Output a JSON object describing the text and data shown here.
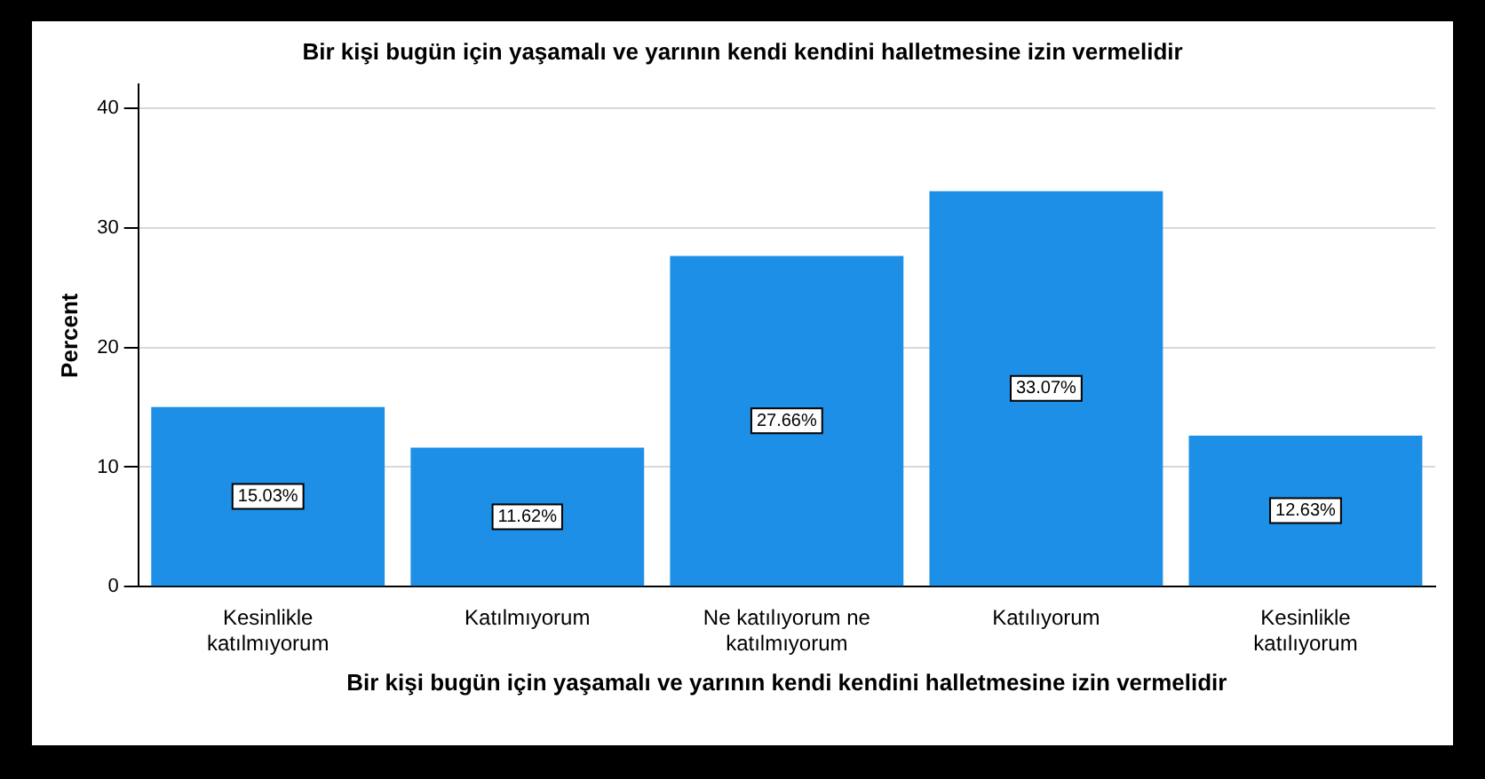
{
  "chart_data": {
    "type": "bar",
    "title": "Bir kişi bugün için yaşamalı ve yarının kendi kendini halletmesine izin vermelidir",
    "xlabel": "Bir kişi bugün için yaşamalı ve yarının kendi kendini halletmesine izin vermelidir",
    "ylabel": "Percent",
    "categories": [
      "Kesinlikle katılmıyorum",
      "Katılmıyorum",
      "Ne katılıyorum ne katılmıyorum",
      "Katılıyorum",
      "Kesinlikle katılıyorum"
    ],
    "values": [
      15.03,
      11.62,
      27.66,
      33.07,
      12.63
    ],
    "value_labels": [
      "15.03%",
      "11.62%",
      "27.66%",
      "33.07%",
      "12.63%"
    ],
    "color": "#1e8fe6",
    "ylim": [
      0,
      42
    ],
    "yticks": [
      0,
      10,
      20,
      30,
      40
    ],
    "grid": "y",
    "legend": false
  }
}
